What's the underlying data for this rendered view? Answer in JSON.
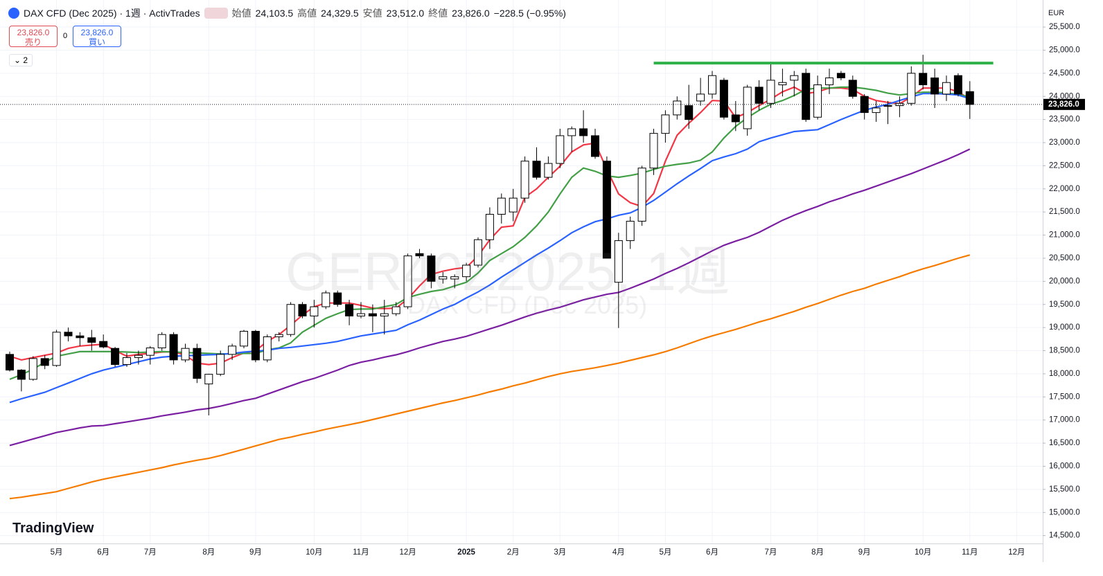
{
  "header": {
    "symbol": "DAX CFD (Dec 2025) · 1週 · ActivTrades",
    "open_label": "始値",
    "open": "24,103.5",
    "high_label": "高値",
    "high": "24,329.5",
    "low_label": "安値",
    "low": "23,512.0",
    "close_label": "終値",
    "close": "23,826.0",
    "change": "−228.5 (−0.95%)"
  },
  "trade": {
    "sell_price": "23,826.0",
    "sell_label": "売り",
    "spread": "0",
    "buy_price": "23,826.0",
    "buy_label": "買い"
  },
  "indicators_count": "2",
  "watermark": "GER40Z2025, 1週",
  "watermark_sub": "DAX CFD (Dec 2025)",
  "brand": "TradingView",
  "currency": "EUR",
  "chart_data": {
    "type": "candlestick",
    "categories": [
      null,
      null,
      null,
      null,
      "5月",
      null,
      null,
      null,
      "6月",
      null,
      null,
      null,
      "7月",
      null,
      null,
      null,
      null,
      "8月",
      null,
      null,
      null,
      "9月",
      null,
      null,
      null,
      null,
      "10月",
      null,
      null,
      null,
      "11月",
      null,
      null,
      null,
      "12月",
      null,
      null,
      null,
      null,
      "2025",
      null,
      null,
      null,
      "2月",
      null,
      null,
      null,
      "3月",
      null,
      null,
      null,
      null,
      "4月",
      null,
      null,
      null,
      "5月",
      null,
      null,
      null,
      "6月",
      null,
      null,
      null,
      null,
      "7月",
      null,
      null,
      null,
      "8月",
      null,
      null,
      null,
      "9月",
      null,
      null,
      null,
      null,
      "10月",
      null,
      null,
      null,
      "11月",
      null,
      null,
      null,
      "12月"
    ],
    "open": [
      18420,
      18080,
      17880,
      18330,
      18180,
      18900,
      18820,
      18780,
      18700,
      18550,
      18200,
      18350,
      18400,
      18560,
      18850,
      18300,
      18550,
      17780,
      17990,
      18420,
      18600,
      18920,
      18300,
      18800,
      18850,
      19500,
      19250,
      19450,
      19750,
      19500,
      19250,
      19300,
      19250,
      19300,
      19450,
      20600,
      20550,
      20050,
      20050,
      20100,
      20350,
      20900,
      21450,
      21500,
      21800,
      22600,
      22250,
      22550,
      23150,
      23300,
      23150,
      22600,
      19980,
      20880,
      21300,
      22450,
      23200,
      23600,
      23800,
      23900,
      24050,
      24350,
      23600,
      23300,
      24200,
      23850,
      24250,
      24350,
      24500,
      23550,
      24250,
      24500,
      24350,
      24000,
      23650,
      23800,
      23800,
      23850,
      24500,
      24400,
      24050,
      24450,
      24103.5,
      null,
      null,
      null,
      null
    ],
    "high": [
      18480,
      18100,
      18380,
      18400,
      18950,
      19000,
      18900,
      18950,
      18850,
      18580,
      18450,
      18500,
      18600,
      18900,
      18900,
      18650,
      18650,
      18000,
      18500,
      18650,
      18950,
      18950,
      18850,
      18900,
      19550,
      19550,
      19600,
      19800,
      19800,
      19600,
      19550,
      19500,
      19600,
      19550,
      20600,
      20700,
      20600,
      20200,
      20150,
      20400,
      20950,
      21600,
      21900,
      22000,
      22700,
      22900,
      22700,
      23300,
      23350,
      23700,
      23300,
      22700,
      21050,
      21400,
      22500,
      23300,
      23700,
      24000,
      24250,
      24400,
      24550,
      24400,
      23900,
      24250,
      24350,
      24750,
      24600,
      24550,
      24600,
      24450,
      24600,
      24550,
      24450,
      24050,
      23900,
      23900,
      24000,
      24650,
      24900,
      24600,
      24450,
      24500,
      24329.5,
      null,
      null,
      null,
      null
    ],
    "low": [
      18050,
      17620,
      17850,
      18100,
      18150,
      18700,
      18600,
      18500,
      18550,
      18150,
      18150,
      18200,
      18200,
      18500,
      18200,
      18250,
      17800,
      17100,
      17950,
      18300,
      18550,
      18250,
      18250,
      18700,
      18800,
      19200,
      19000,
      19400,
      19450,
      19050,
      19200,
      18900,
      18850,
      19250,
      19400,
      20500,
      19850,
      19950,
      19850,
      20000,
      20300,
      20700,
      21250,
      21300,
      21700,
      22200,
      22200,
      22450,
      22800,
      23000,
      22650,
      20500,
      18990,
      20700,
      21200,
      22300,
      23000,
      23500,
      23300,
      23800,
      23950,
      23500,
      23250,
      23150,
      23700,
      23750,
      24000,
      24000,
      23450,
      23500,
      24050,
      24350,
      23950,
      23500,
      23450,
      23400,
      23550,
      23800,
      24150,
      23750,
      23900,
      24000,
      23512,
      null,
      null,
      null,
      null
    ],
    "close": [
      18080,
      17880,
      18330,
      18180,
      18900,
      18820,
      18780,
      18680,
      18580,
      18200,
      18350,
      18400,
      18560,
      18850,
      18300,
      18550,
      17900,
      17990,
      18420,
      18600,
      18920,
      18300,
      18800,
      18850,
      19500,
      19250,
      19450,
      19750,
      19500,
      19250,
      19300,
      19250,
      19300,
      19450,
      20550,
      20550,
      20000,
      20100,
      20100,
      20350,
      20900,
      21450,
      21800,
      21800,
      22600,
      22250,
      22550,
      23150,
      23300,
      23150,
      22700,
      20500,
      20880,
      21300,
      22450,
      23200,
      23600,
      23900,
      23500,
      24050,
      24450,
      23550,
      23450,
      24200,
      23850,
      24350,
      24300,
      24450,
      23500,
      24250,
      24400,
      24400,
      24000,
      23650,
      23750,
      23800,
      23850,
      24500,
      24250,
      24050,
      24300,
      24050,
      23826,
      null,
      null,
      null,
      null
    ],
    "up_color": "#ffffff",
    "down_color": "#000000",
    "wick_color": "#000000",
    "series": [
      {
        "color": "#f23645",
        "values": [
          18380,
          18300,
          18350,
          18400,
          18450,
          18550,
          18600,
          18620,
          18640,
          18500,
          18380,
          18420,
          18440,
          18470,
          18480,
          18400,
          18230,
          18200,
          18230,
          18350,
          18450,
          18500,
          18700,
          18850,
          19050,
          19270,
          19450,
          19530,
          19530,
          19530,
          19480,
          19420,
          19410,
          19420,
          19620,
          19900,
          20150,
          20220,
          20270,
          20300,
          20550,
          20900,
          21170,
          21200,
          21820,
          22000,
          22250,
          22490,
          22800,
          22950,
          22990,
          22420,
          21890,
          21700,
          21620,
          21900,
          22600,
          23160,
          23420,
          23650,
          23910,
          23900,
          23540,
          23650,
          23800,
          23940,
          24100,
          24200,
          24060,
          24100,
          24180,
          24180,
          24150,
          24000,
          23910,
          23870,
          23840,
          23990,
          24180,
          24180,
          24180,
          24100,
          23940,
          null,
          null,
          null,
          null
        ]
      },
      {
        "color": "#43a047",
        "values": [
          17880,
          17980,
          18100,
          18250,
          18380,
          18430,
          18480,
          18480,
          18480,
          18480,
          18470,
          18460,
          18470,
          18480,
          18470,
          18460,
          18450,
          18440,
          18430,
          18430,
          18440,
          18440,
          18520,
          18560,
          18670,
          18900,
          19050,
          19200,
          19300,
          19390,
          19400,
          19400,
          19450,
          19500,
          19650,
          19720,
          19780,
          19820,
          19900,
          19980,
          20180,
          20450,
          20600,
          20750,
          20950,
          21200,
          21500,
          21890,
          22250,
          22450,
          22380,
          22280,
          22250,
          22290,
          22340,
          22420,
          22490,
          22530,
          22560,
          22620,
          22800,
          23100,
          23350,
          23540,
          23700,
          23830,
          23910,
          24020,
          24150,
          24180,
          24180,
          24200,
          24200,
          24170,
          24130,
          24070,
          24030,
          24060,
          24090,
          24090,
          24080,
          24040,
          23990,
          null,
          null,
          null,
          null
        ]
      },
      {
        "color": "#2962ff",
        "values": [
          17380,
          17460,
          17530,
          17600,
          17700,
          17800,
          17900,
          18000,
          18080,
          18140,
          18200,
          18260,
          18320,
          18360,
          18380,
          18390,
          18400,
          18410,
          18420,
          18440,
          18470,
          18490,
          18510,
          18550,
          18570,
          18600,
          18630,
          18660,
          18700,
          18760,
          18820,
          18860,
          18900,
          18940,
          19060,
          19160,
          19280,
          19400,
          19500,
          19640,
          19770,
          19920,
          20090,
          20250,
          20410,
          20570,
          20720,
          20880,
          21050,
          21180,
          21290,
          21350,
          21430,
          21480,
          21600,
          21750,
          21930,
          22110,
          22280,
          22440,
          22610,
          22690,
          22760,
          22860,
          23020,
          23100,
          23170,
          23240,
          23260,
          23280,
          23390,
          23500,
          23600,
          23700,
          23770,
          23830,
          23910,
          23990,
          24060,
          24060,
          24050,
          24030,
          23950,
          null,
          null,
          null,
          null
        ]
      },
      {
        "color": "#7b1fa2",
        "values": [
          16450,
          16520,
          16590,
          16660,
          16730,
          16780,
          16830,
          16870,
          16880,
          16920,
          16960,
          17000,
          17040,
          17090,
          17130,
          17170,
          17220,
          17250,
          17300,
          17360,
          17420,
          17470,
          17560,
          17650,
          17740,
          17830,
          17900,
          17990,
          18080,
          18180,
          18250,
          18300,
          18360,
          18410,
          18480,
          18560,
          18630,
          18700,
          18750,
          18810,
          18890,
          18970,
          19050,
          19140,
          19230,
          19310,
          19380,
          19440,
          19520,
          19600,
          19660,
          19720,
          19760,
          19850,
          19950,
          20050,
          20170,
          20280,
          20400,
          20530,
          20660,
          20780,
          20870,
          20950,
          21060,
          21190,
          21320,
          21430,
          21530,
          21620,
          21720,
          21800,
          21890,
          21970,
          22060,
          22150,
          22240,
          22330,
          22430,
          22530,
          22630,
          22740,
          22860,
          null,
          null,
          null,
          null
        ]
      },
      {
        "color": "#f57c00",
        "values": [
          15300,
          15330,
          15370,
          15410,
          15450,
          15520,
          15590,
          15660,
          15720,
          15770,
          15820,
          15870,
          15920,
          15970,
          16030,
          16080,
          16130,
          16170,
          16230,
          16300,
          16370,
          16440,
          16510,
          16580,
          16630,
          16690,
          16740,
          16800,
          16850,
          16900,
          16950,
          17010,
          17070,
          17130,
          17190,
          17250,
          17310,
          17370,
          17420,
          17480,
          17540,
          17610,
          17670,
          17740,
          17800,
          17870,
          17940,
          18000,
          18050,
          18090,
          18130,
          18180,
          18230,
          18290,
          18350,
          18410,
          18480,
          18560,
          18650,
          18740,
          18820,
          18890,
          18960,
          19040,
          19120,
          19190,
          19270,
          19350,
          19440,
          19520,
          19610,
          19700,
          19780,
          19850,
          19940,
          20020,
          20100,
          20190,
          20270,
          20340,
          20420,
          20500,
          20570,
          null,
          null,
          null,
          null
        ]
      }
    ],
    "hline": {
      "value": 24720,
      "x": [
        55,
        84
      ],
      "color": "#2fb14a"
    },
    "last_price_label": "23,826.0",
    "ylim": [
      14330,
      26010
    ],
    "yticks": [
      {
        "value": 14500,
        "label": "14,500.0"
      },
      {
        "value": 15000,
        "label": "15,000.0"
      },
      {
        "value": 15500,
        "label": "15,500.0"
      },
      {
        "value": 16000,
        "label": "16,000.0"
      },
      {
        "value": 16500,
        "label": "16,500.0"
      },
      {
        "value": 17000,
        "label": "17,000.0"
      },
      {
        "value": 17500,
        "label": "17,500.0"
      },
      {
        "value": 18000,
        "label": "18,000.0"
      },
      {
        "value": 18500,
        "label": "18,500.0"
      },
      {
        "value": 19000,
        "label": "19,000.0"
      },
      {
        "value": 19500,
        "label": "19,500.0"
      },
      {
        "value": 20000,
        "label": "20,000.0"
      },
      {
        "value": 20500,
        "label": "20,500.0"
      },
      {
        "value": 21000,
        "label": "21,000.0"
      },
      {
        "value": 21500,
        "label": "21,500.0"
      },
      {
        "value": 22000,
        "label": "22,000.0"
      },
      {
        "value": 22500,
        "label": "22,500.0"
      },
      {
        "value": 23000,
        "label": "23,000.0"
      },
      {
        "value": 23500,
        "label": "23,500.0"
      },
      {
        "value": 24000,
        "label": "24,000.0"
      },
      {
        "value": 24500,
        "label": "24,500.0"
      },
      {
        "value": 25000,
        "label": "25,000.0"
      },
      {
        "value": 25500,
        "label": "25,500.0"
      }
    ],
    "grid": true
  }
}
